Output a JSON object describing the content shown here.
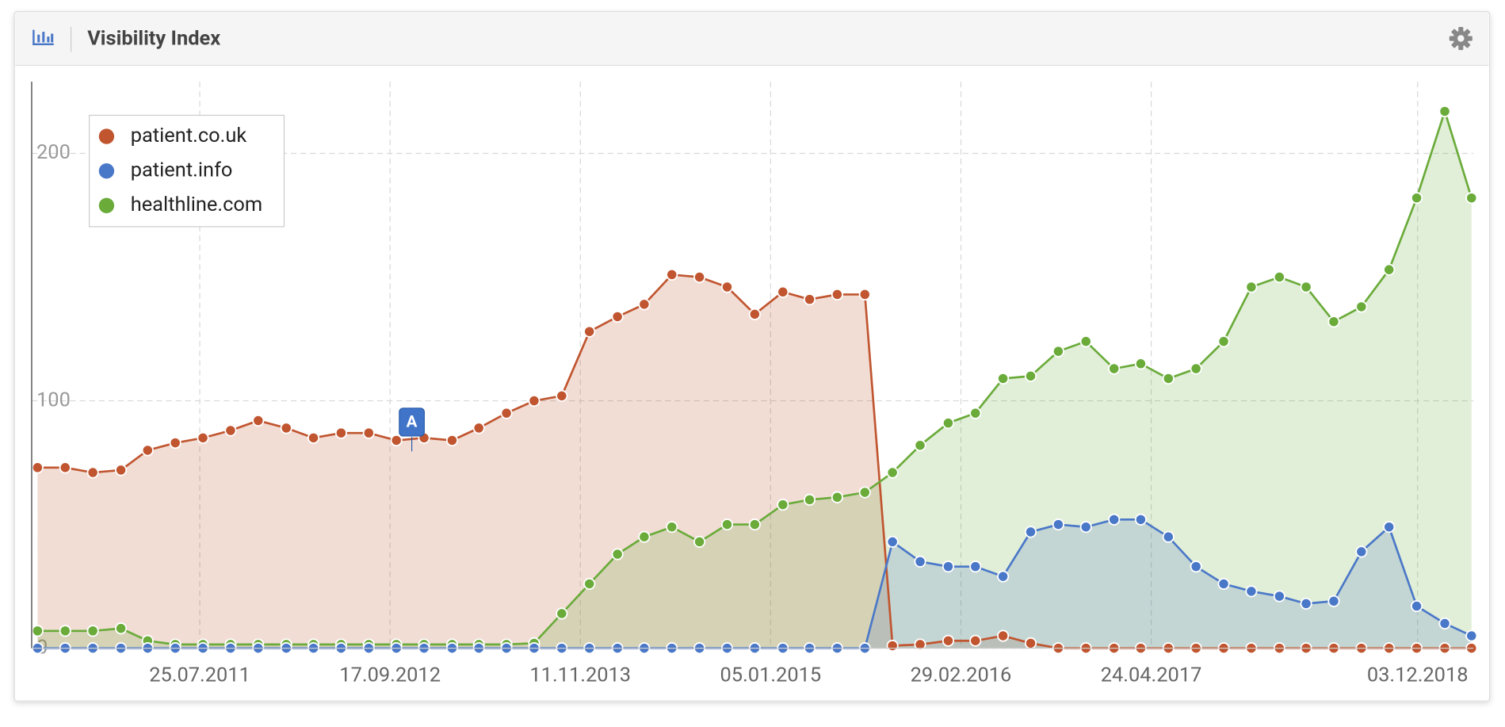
{
  "chart_data": {
    "type": "area",
    "title": "Visibility Index",
    "x": [
      "01.08.2010",
      "01.10.2010",
      "01.12.2010",
      "01.02.2011",
      "01.04.2011",
      "01.06.2011",
      "01.08.2011",
      "01.10.2011",
      "01.12.2011",
      "01.02.2012",
      "01.04.2012",
      "01.06.2012",
      "01.08.2012",
      "01.10.2012",
      "01.12.2012",
      "01.02.2013",
      "01.04.2013",
      "01.06.2013",
      "01.08.2013",
      "01.10.2013",
      "01.12.2013",
      "01.02.2014",
      "01.04.2014",
      "01.06.2014",
      "01.08.2014",
      "01.10.2014",
      "01.12.2014",
      "01.02.2015",
      "01.04.2015",
      "01.06.2015",
      "01.08.2015",
      "01.10.2015",
      "01.12.2015",
      "01.02.2016",
      "01.04.2016",
      "01.06.2016",
      "01.08.2016",
      "01.10.2016",
      "01.12.2016",
      "01.02.2017",
      "01.04.2017",
      "01.06.2017",
      "01.08.2017",
      "01.10.2017",
      "01.12.2017",
      "01.02.2018",
      "01.04.2018",
      "01.06.2018",
      "01.08.2018",
      "01.10.2018",
      "01.12.2018",
      "01.02.2019",
      "01.04.2019"
    ],
    "series": [
      {
        "name": "patient.co.uk",
        "color": "#c0552f",
        "values": [
          73,
          73,
          71,
          72,
          80,
          83,
          85,
          88,
          92,
          89,
          85,
          87,
          87,
          84,
          85,
          84,
          89,
          95,
          100,
          102,
          128,
          134,
          139,
          151,
          150,
          146,
          135,
          144,
          141,
          143,
          143,
          1,
          1.5,
          3,
          3,
          5,
          2,
          0,
          0,
          0,
          0,
          0,
          0,
          0,
          0,
          0,
          0,
          0,
          0,
          0,
          0,
          0,
          0
        ]
      },
      {
        "name": "patient.info",
        "color": "#4a78c8",
        "values": [
          0,
          0,
          0,
          0,
          0,
          0,
          0,
          0,
          0,
          0,
          0,
          0,
          0,
          0,
          0,
          0,
          0,
          0,
          0,
          0,
          0,
          0,
          0,
          0,
          0,
          0,
          0,
          0,
          0,
          0,
          0,
          43,
          35,
          33,
          33,
          29,
          47,
          50,
          49,
          52,
          52,
          45,
          33,
          26,
          23,
          21,
          18,
          19,
          39,
          49,
          17,
          10,
          5
        ]
      },
      {
        "name": "healthline.com",
        "color": "#6aab3a",
        "values": [
          7,
          7,
          7,
          8,
          3,
          1.5,
          1.5,
          1.5,
          1.5,
          1.5,
          1.5,
          1.5,
          1.5,
          1.5,
          1.5,
          1.5,
          1.5,
          1.5,
          2,
          14,
          26,
          38,
          45,
          49,
          43,
          50,
          50,
          58,
          60,
          61,
          63,
          71,
          82,
          91,
          95,
          109,
          110,
          120,
          124,
          113,
          115,
          109,
          113,
          124,
          146,
          150,
          146,
          132,
          138,
          153,
          182,
          217,
          182
        ]
      }
    ],
    "xlim": [
      "19.07.2010",
      "05.04.2019"
    ],
    "xticks": [
      "25.07.2011",
      "17.09.2012",
      "11.11.2013",
      "05.01.2015",
      "29.02.2016",
      "24.04.2017",
      "03.12.2018"
    ],
    "ylim": [
      0,
      229
    ],
    "yticks": [
      0,
      100,
      200
    ],
    "grid": true,
    "legend": "top-left",
    "annotations": [
      {
        "label": "A",
        "x": "04.11.2012"
      }
    ]
  }
}
